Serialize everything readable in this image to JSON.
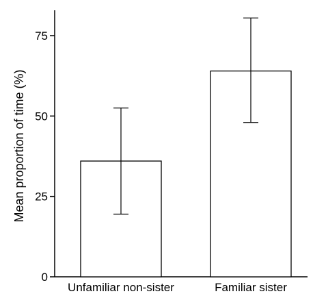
{
  "chart_data": {
    "type": "bar",
    "categories": [
      "Unfamiliar non-sister",
      "Familiar sister"
    ],
    "values": [
      36,
      64
    ],
    "error_bars": [
      {
        "low": 19.5,
        "high": 52.5
      },
      {
        "low": 48,
        "high": 80.5
      }
    ],
    "ylabel": "Mean proportion of time (%)",
    "xlabel": "",
    "ylim": [
      0,
      85
    ],
    "yticks": [
      0,
      25,
      50,
      75
    ],
    "ytick_labels": [
      "0",
      "25",
      "50",
      "75"
    ],
    "grid": false,
    "colors": {
      "bar_fill": "#ffffff",
      "stroke": "#000000"
    }
  }
}
